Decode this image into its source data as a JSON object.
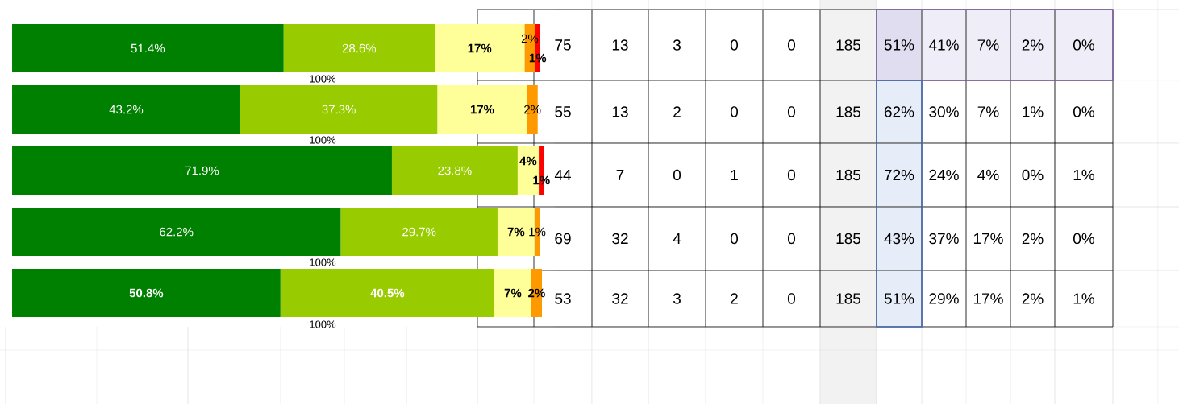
{
  "chart_data": [
    {
      "type": "bar",
      "orientation": "horizontal",
      "stacked": true,
      "categories": [
        null,
        null,
        null,
        null,
        null
      ],
      "xlim": [
        0,
        101
      ],
      "series": [
        {
          "color": "#008000",
          "values": [
            51.4,
            43.2,
            71.9,
            62.2,
            50.8
          ],
          "value_labels": [
            "51.4%",
            "43.2%",
            "71.9%",
            "62.2%",
            "50.8%"
          ]
        },
        {
          "color": "#99CC00",
          "values": [
            28.6,
            37.3,
            23.8,
            29.7,
            40.5
          ],
          "value_labels": [
            "28.6%",
            "37.3%",
            "23.8%",
            "29.7%",
            "40.5%"
          ]
        },
        {
          "color": "#FFFF99",
          "values": [
            17,
            17,
            4,
            7,
            7
          ],
          "value_labels": [
            "17%",
            "17%",
            "4%",
            "7%",
            "7%"
          ]
        },
        {
          "color": "#FF9900",
          "values": [
            2,
            2,
            0,
            1,
            2
          ],
          "value_labels": [
            "2%",
            "2%",
            null,
            "1%",
            "2%"
          ]
        },
        {
          "color": "#FF0000",
          "values": [
            1,
            0,
            1,
            0,
            0
          ],
          "value_labels": [
            "1%",
            null,
            "1%",
            null,
            null
          ]
        }
      ]
    },
    {
      "type": "other",
      "annotations": [
        "75",
        "13",
        "3",
        "0",
        "0",
        "185",
        "51%",
        "41%",
        "7%",
        "2%",
        "0%",
        "55",
        "13",
        "2",
        "0",
        "0",
        "185",
        "62%",
        "30%",
        "7%",
        "1%",
        "0%",
        "44",
        "7",
        "0",
        "1",
        "0",
        "185",
        "72%",
        "24%",
        "4%",
        "0%",
        "1%",
        "69",
        "32",
        "4",
        "0",
        "0",
        "185",
        "43%",
        "37%",
        "17%",
        "2%",
        "0%",
        "53",
        "32",
        "3",
        "2",
        "0",
        "185",
        "51%",
        "29%",
        "17%",
        "2%",
        "1%",
        "100%",
        "100%",
        "100%",
        "100%"
      ]
    }
  ]
}
